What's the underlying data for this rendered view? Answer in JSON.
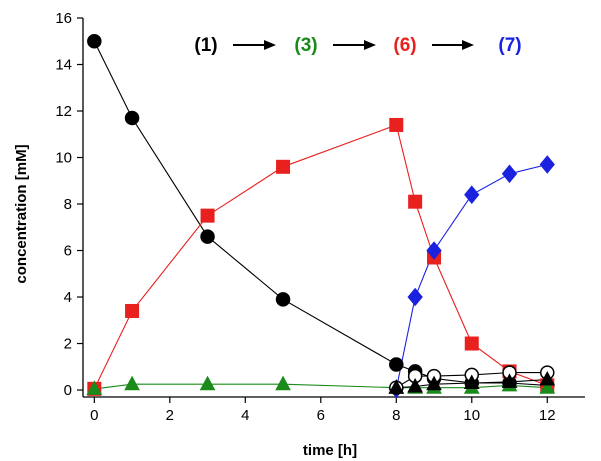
{
  "chart_data": {
    "type": "scatter",
    "title": "",
    "xlabel": "time [h]",
    "ylabel": "concentration [mM]",
    "xlim": [
      -0.3,
      13
    ],
    "ylim": [
      -0.3,
      16
    ],
    "x_ticks": [
      0,
      2,
      4,
      6,
      8,
      10,
      12
    ],
    "y_ticks": [
      0,
      2,
      4,
      6,
      8,
      10,
      12,
      14,
      16
    ],
    "grid": false,
    "scheme": {
      "steps": [
        {
          "label": "(1)",
          "color": "#000000"
        },
        {
          "label": "(3)",
          "color": "#1a8a1a"
        },
        {
          "label": "(6)",
          "color": "#e8201e"
        },
        {
          "label": "(7)",
          "color": "#1a22e0"
        }
      ]
    },
    "series": [
      {
        "marker": "circle",
        "color": "#000000",
        "line": "#000000",
        "filled": true,
        "x": [
          0,
          1,
          3,
          5,
          8,
          8.5,
          9,
          10,
          11,
          12
        ],
        "y": [
          15.0,
          11.7,
          6.6,
          3.9,
          1.1,
          0.8,
          0.5,
          0.3,
          0.3,
          0.2
        ]
      },
      {
        "marker": "square",
        "color": "#e8201e",
        "line": "#e8201e",
        "filled": true,
        "x": [
          0,
          1,
          3,
          5,
          8,
          8.5,
          9,
          10,
          11,
          12
        ],
        "y": [
          0.05,
          3.4,
          7.5,
          9.6,
          11.4,
          8.1,
          5.7,
          2.0,
          0.8,
          0.2
        ]
      },
      {
        "marker": "triangle",
        "color": "#1a8a1a",
        "line": "#1a8a1a",
        "filled": true,
        "x": [
          0,
          1,
          3,
          5,
          8,
          8.5,
          9,
          10,
          11,
          12
        ],
        "y": [
          0.05,
          0.25,
          0.25,
          0.25,
          0.1,
          0.1,
          0.1,
          0.1,
          0.2,
          0.1
        ]
      },
      {
        "marker": "diamond",
        "color": "#1a22e0",
        "line": "#1a22e0",
        "filled": true,
        "x": [
          8,
          8.5,
          9,
          10,
          11,
          12
        ],
        "y": [
          0.05,
          4.0,
          6.0,
          8.4,
          9.3,
          9.7
        ]
      },
      {
        "marker": "circle",
        "color": "#000000",
        "line": "#000000",
        "filled": false,
        "x": [
          8,
          8.5,
          9,
          10,
          11,
          12
        ],
        "y": [
          0.1,
          0.6,
          0.6,
          0.65,
          0.75,
          0.75
        ]
      },
      {
        "marker": "triangle",
        "color": "#000000",
        "line": "#000000",
        "filled": true,
        "x": [
          8,
          8.5,
          9,
          10,
          11,
          12
        ],
        "y": [
          0.1,
          0.15,
          0.25,
          0.3,
          0.35,
          0.45
        ]
      }
    ]
  }
}
